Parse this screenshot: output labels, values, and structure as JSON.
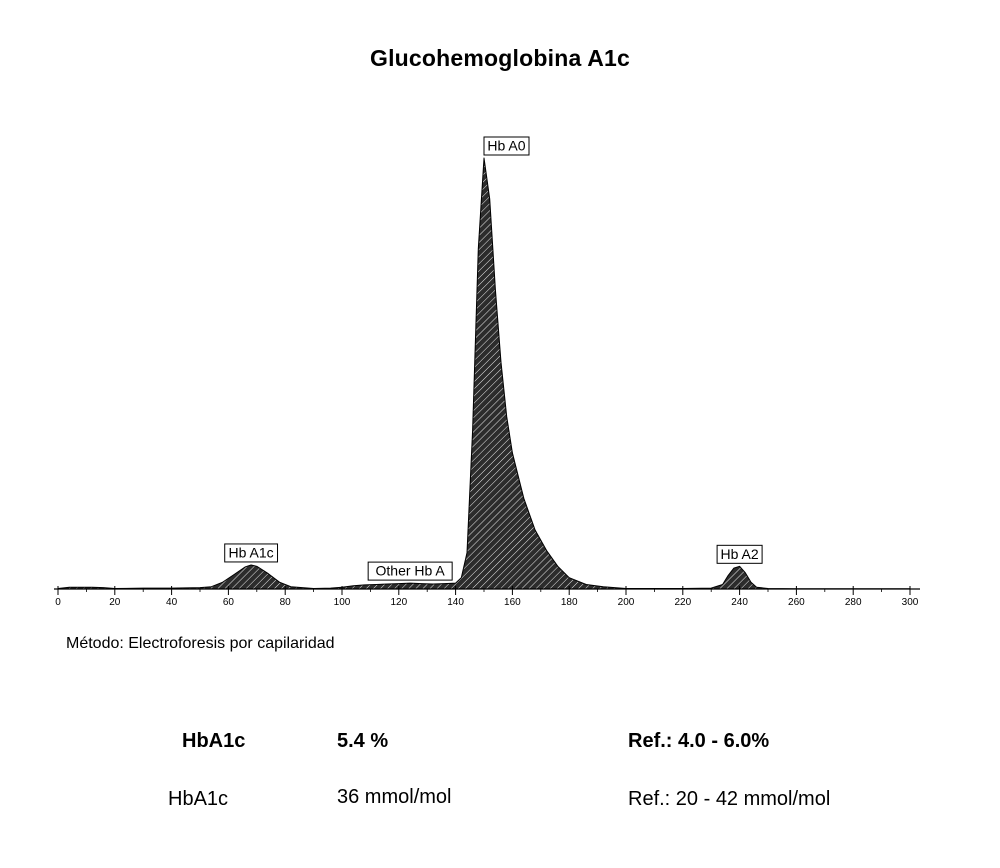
{
  "title": "Glucohemoglobina A1c",
  "chart_data": {
    "type": "area",
    "title": "Glucohemoglobina A1c",
    "xlim": [
      0,
      300
    ],
    "xticks": [
      0,
      20,
      40,
      60,
      80,
      100,
      120,
      140,
      160,
      180,
      200,
      220,
      240,
      260,
      280,
      300
    ],
    "peaks": [
      {
        "label": "Hb A1c",
        "center": 68,
        "height": 5.3
      },
      {
        "label": "Other Hb A",
        "center": 124,
        "height": 1.3
      },
      {
        "label": "Hb A0",
        "center": 150,
        "height": 95
      },
      {
        "label": "Hb A2",
        "center": 240,
        "height": 5.0
      }
    ],
    "series": [
      {
        "x": [
          0,
          4,
          8,
          12,
          16,
          20,
          30,
          40,
          50,
          54,
          58,
          62,
          66,
          68,
          70,
          74,
          78,
          82,
          90,
          96,
          100,
          104,
          108,
          112,
          116,
          120,
          124,
          128,
          132,
          136,
          140,
          142,
          144,
          146,
          148,
          150,
          152,
          154,
          156,
          158,
          160,
          164,
          168,
          172,
          176,
          180,
          186,
          192,
          200,
          210,
          220,
          230,
          234,
          236,
          238,
          240,
          242,
          244,
          246,
          250,
          260,
          280,
          300
        ],
        "y": [
          0.1,
          0.4,
          0.4,
          0.4,
          0.3,
          0.1,
          0.2,
          0.2,
          0.3,
          0.5,
          1.5,
          3.2,
          4.9,
          5.3,
          5.0,
          3.4,
          1.5,
          0.5,
          0.1,
          0.2,
          0.4,
          0.7,
          0.9,
          1.0,
          1.1,
          1.2,
          1.3,
          1.2,
          1.1,
          1.2,
          1.3,
          2.5,
          8,
          35,
          75,
          95,
          86,
          66,
          50,
          38,
          30,
          20,
          13,
          8.5,
          5,
          2.5,
          1.0,
          0.5,
          0.1,
          0.1,
          0.1,
          0.2,
          1.0,
          3.0,
          4.6,
          5.0,
          3.6,
          1.5,
          0.4,
          0.1,
          0.05,
          0.05,
          0.05
        ]
      }
    ]
  },
  "method": "Método: Electroforesis por capilaridad",
  "results": [
    {
      "analyte": "HbA1c",
      "value": "5.4 %",
      "ref": "Ref.: 4.0 - 6.0%"
    },
    {
      "analyte": "HbA1c",
      "value": "36 mmol/mol",
      "ref": "Ref.: 20 - 42 mmol/mol"
    }
  ]
}
